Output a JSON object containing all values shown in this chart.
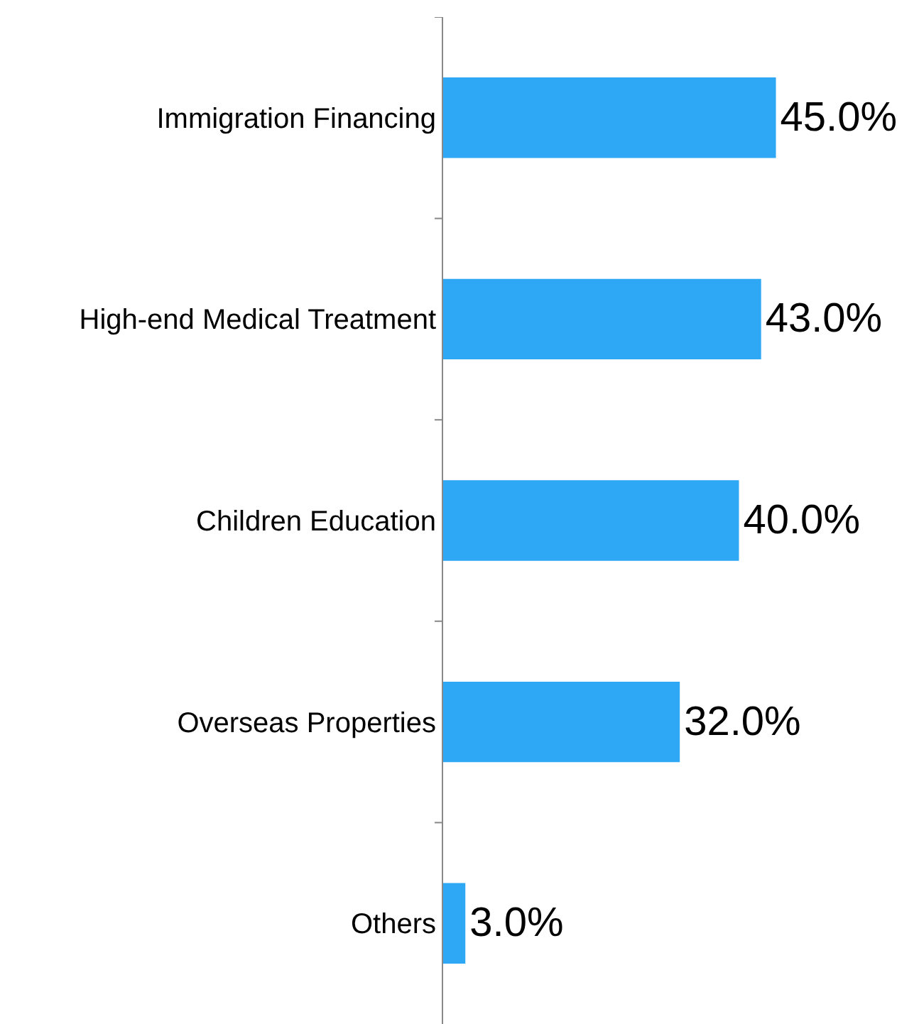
{
  "chart_data": {
    "type": "bar",
    "orientation": "horizontal",
    "categories": [
      "Immigration Financing",
      "High-end Medical Treatment",
      "Children Education",
      "Overseas Properties",
      "Others"
    ],
    "values": [
      45.0,
      43.0,
      40.0,
      32.0,
      3.0
    ],
    "value_labels": [
      "45.0%",
      "43.0%",
      "40.0%",
      "32.0%",
      "3.0%"
    ],
    "color": "#2ea8f4"
  }
}
